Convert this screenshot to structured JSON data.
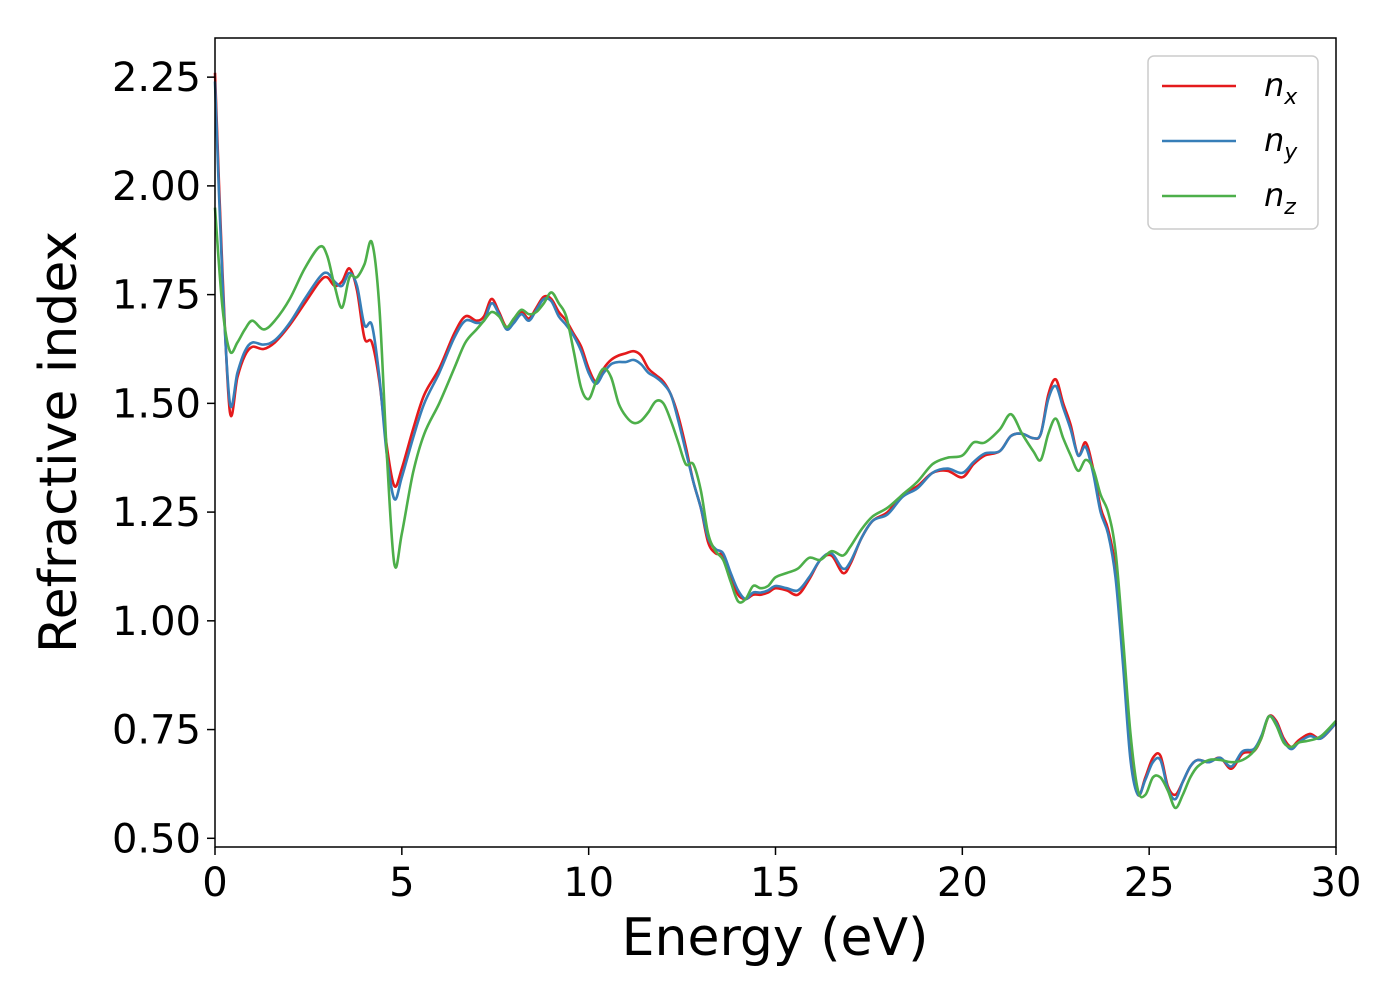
{
  "chart_data": {
    "type": "line",
    "xlabel": "Energy (eV)",
    "ylabel": "Refractive index",
    "xlim": [
      0,
      30
    ],
    "ylim": [
      0.48,
      2.34
    ],
    "xticks": [
      "0",
      "5",
      "10",
      "15",
      "20",
      "25",
      "30"
    ],
    "yticks": [
      "0.50",
      "0.75",
      "1.00",
      "1.25",
      "1.50",
      "1.75",
      "2.00",
      "2.25"
    ],
    "legend_position": "top-right",
    "grid": false,
    "series": [
      {
        "name": "n",
        "sub": "x",
        "color": "#e41a1c",
        "x": [
          0,
          0.2,
          0.4,
          0.6,
          0.8,
          1.0,
          1.3,
          1.6,
          2.0,
          2.4,
          2.8,
          3.0,
          3.2,
          3.4,
          3.6,
          3.8,
          4.0,
          4.2,
          4.4,
          4.6,
          4.8,
          5.0,
          5.3,
          5.6,
          6.0,
          6.4,
          6.7,
          7.0,
          7.2,
          7.4,
          7.6,
          7.8,
          8.0,
          8.2,
          8.4,
          8.6,
          8.8,
          9.0,
          9.2,
          9.4,
          9.6,
          9.8,
          10.0,
          10.2,
          10.4,
          10.6,
          10.8,
          11.0,
          11.2,
          11.4,
          11.6,
          11.8,
          12.0,
          12.2,
          12.4,
          12.6,
          12.8,
          13.0,
          13.2,
          13.4,
          13.6,
          13.8,
          14.0,
          14.2,
          14.4,
          14.6,
          14.8,
          15.0,
          15.3,
          15.6,
          15.9,
          16.2,
          16.5,
          16.8,
          17.0,
          17.3,
          17.6,
          18.0,
          18.4,
          18.8,
          19.2,
          19.6,
          20.0,
          20.3,
          20.6,
          21.0,
          21.3,
          21.6,
          21.9,
          22.1,
          22.3,
          22.5,
          22.7,
          22.9,
          23.1,
          23.3,
          23.5,
          23.7,
          23.9,
          24.1,
          24.3,
          24.5,
          24.7,
          24.9,
          25.1,
          25.3,
          25.5,
          25.7,
          25.9,
          26.1,
          26.3,
          26.6,
          26.9,
          27.2,
          27.5,
          27.8,
          28.0,
          28.2,
          28.4,
          28.6,
          28.8,
          29.0,
          29.3,
          29.6,
          30.0
        ],
        "y": [
          2.26,
          1.8,
          1.48,
          1.56,
          1.61,
          1.63,
          1.625,
          1.64,
          1.68,
          1.73,
          1.78,
          1.79,
          1.77,
          1.78,
          1.81,
          1.76,
          1.65,
          1.64,
          1.55,
          1.4,
          1.31,
          1.35,
          1.44,
          1.52,
          1.58,
          1.66,
          1.7,
          1.69,
          1.7,
          1.74,
          1.71,
          1.675,
          1.69,
          1.71,
          1.695,
          1.72,
          1.745,
          1.74,
          1.71,
          1.69,
          1.66,
          1.63,
          1.58,
          1.55,
          1.58,
          1.6,
          1.61,
          1.615,
          1.62,
          1.61,
          1.58,
          1.565,
          1.55,
          1.52,
          1.47,
          1.4,
          1.32,
          1.26,
          1.18,
          1.155,
          1.15,
          1.1,
          1.06,
          1.05,
          1.06,
          1.06,
          1.065,
          1.075,
          1.07,
          1.06,
          1.095,
          1.14,
          1.15,
          1.11,
          1.13,
          1.19,
          1.23,
          1.25,
          1.29,
          1.31,
          1.34,
          1.345,
          1.33,
          1.36,
          1.38,
          1.39,
          1.425,
          1.43,
          1.42,
          1.43,
          1.52,
          1.555,
          1.5,
          1.45,
          1.38,
          1.41,
          1.35,
          1.26,
          1.21,
          1.12,
          0.92,
          0.7,
          0.6,
          0.64,
          0.685,
          0.69,
          0.62,
          0.6,
          0.63,
          0.665,
          0.68,
          0.675,
          0.685,
          0.66,
          0.695,
          0.7,
          0.73,
          0.78,
          0.77,
          0.73,
          0.71,
          0.725,
          0.74,
          0.73,
          0.765
        ]
      },
      {
        "name": "n",
        "sub": "y",
        "color": "#377eb8",
        "x": [
          0,
          0.2,
          0.4,
          0.6,
          0.8,
          1.0,
          1.3,
          1.6,
          2.0,
          2.4,
          2.8,
          3.0,
          3.2,
          3.4,
          3.6,
          3.8,
          4.0,
          4.2,
          4.4,
          4.6,
          4.8,
          5.0,
          5.3,
          5.6,
          6.0,
          6.4,
          6.7,
          7.0,
          7.2,
          7.4,
          7.6,
          7.8,
          8.0,
          8.2,
          8.4,
          8.6,
          8.8,
          9.0,
          9.2,
          9.4,
          9.6,
          9.8,
          10.0,
          10.2,
          10.4,
          10.6,
          10.8,
          11.0,
          11.2,
          11.4,
          11.6,
          11.8,
          12.0,
          12.2,
          12.4,
          12.6,
          12.8,
          13.0,
          13.2,
          13.4,
          13.6,
          13.8,
          14.0,
          14.2,
          14.4,
          14.6,
          14.8,
          15.0,
          15.3,
          15.6,
          15.9,
          16.2,
          16.5,
          16.8,
          17.0,
          17.3,
          17.6,
          18.0,
          18.4,
          18.8,
          19.2,
          19.6,
          20.0,
          20.3,
          20.6,
          21.0,
          21.3,
          21.6,
          21.9,
          22.1,
          22.3,
          22.5,
          22.7,
          22.9,
          23.1,
          23.3,
          23.5,
          23.7,
          23.9,
          24.1,
          24.3,
          24.5,
          24.7,
          24.9,
          25.1,
          25.3,
          25.5,
          25.7,
          25.9,
          26.1,
          26.3,
          26.6,
          26.9,
          27.2,
          27.5,
          27.8,
          28.0,
          28.2,
          28.4,
          28.6,
          28.8,
          29.0,
          29.3,
          29.6,
          30.0
        ],
        "y": [
          2.24,
          1.78,
          1.5,
          1.57,
          1.62,
          1.64,
          1.635,
          1.645,
          1.685,
          1.74,
          1.79,
          1.8,
          1.78,
          1.77,
          1.8,
          1.77,
          1.68,
          1.68,
          1.56,
          1.38,
          1.28,
          1.33,
          1.42,
          1.5,
          1.57,
          1.65,
          1.69,
          1.685,
          1.69,
          1.73,
          1.705,
          1.67,
          1.685,
          1.705,
          1.69,
          1.715,
          1.74,
          1.735,
          1.7,
          1.68,
          1.655,
          1.62,
          1.57,
          1.545,
          1.57,
          1.59,
          1.595,
          1.595,
          1.6,
          1.59,
          1.57,
          1.56,
          1.545,
          1.52,
          1.46,
          1.39,
          1.32,
          1.26,
          1.19,
          1.165,
          1.155,
          1.11,
          1.07,
          1.05,
          1.065,
          1.065,
          1.07,
          1.08,
          1.075,
          1.07,
          1.1,
          1.14,
          1.155,
          1.12,
          1.135,
          1.19,
          1.23,
          1.245,
          1.285,
          1.305,
          1.34,
          1.35,
          1.34,
          1.365,
          1.385,
          1.39,
          1.425,
          1.43,
          1.42,
          1.43,
          1.51,
          1.54,
          1.49,
          1.44,
          1.38,
          1.4,
          1.34,
          1.25,
          1.2,
          1.1,
          0.9,
          0.68,
          0.6,
          0.635,
          0.675,
          0.68,
          0.615,
          0.59,
          0.63,
          0.665,
          0.68,
          0.675,
          0.685,
          0.665,
          0.7,
          0.705,
          0.735,
          0.78,
          0.765,
          0.725,
          0.705,
          0.72,
          0.735,
          0.73,
          0.765
        ]
      },
      {
        "name": "n",
        "sub": "z",
        "color": "#4daf4a",
        "x": [
          0,
          0.2,
          0.4,
          0.6,
          0.8,
          1.0,
          1.3,
          1.6,
          2.0,
          2.4,
          2.8,
          3.0,
          3.2,
          3.4,
          3.6,
          3.8,
          4.0,
          4.2,
          4.4,
          4.6,
          4.8,
          5.0,
          5.3,
          5.6,
          6.0,
          6.4,
          6.7,
          7.0,
          7.2,
          7.4,
          7.6,
          7.8,
          8.0,
          8.2,
          8.4,
          8.6,
          8.8,
          9.0,
          9.2,
          9.4,
          9.6,
          9.8,
          10.0,
          10.2,
          10.4,
          10.6,
          10.8,
          11.0,
          11.2,
          11.4,
          11.6,
          11.8,
          12.0,
          12.2,
          12.4,
          12.6,
          12.8,
          13.0,
          13.2,
          13.4,
          13.6,
          13.8,
          14.0,
          14.2,
          14.4,
          14.6,
          14.8,
          15.0,
          15.3,
          15.6,
          15.9,
          16.2,
          16.5,
          16.8,
          17.0,
          17.3,
          17.6,
          18.0,
          18.4,
          18.8,
          19.2,
          19.6,
          20.0,
          20.3,
          20.6,
          21.0,
          21.3,
          21.6,
          21.9,
          22.1,
          22.3,
          22.5,
          22.7,
          22.9,
          23.1,
          23.3,
          23.5,
          23.7,
          23.9,
          24.1,
          24.3,
          24.5,
          24.7,
          24.9,
          25.1,
          25.3,
          25.5,
          25.7,
          25.9,
          26.1,
          26.3,
          26.6,
          26.9,
          27.2,
          27.5,
          27.8,
          28.0,
          28.2,
          28.4,
          28.6,
          28.8,
          29.0,
          29.3,
          29.6,
          30.0
        ],
        "y": [
          1.95,
          1.72,
          1.62,
          1.64,
          1.67,
          1.69,
          1.67,
          1.69,
          1.74,
          1.81,
          1.86,
          1.84,
          1.77,
          1.72,
          1.79,
          1.79,
          1.82,
          1.87,
          1.72,
          1.38,
          1.13,
          1.2,
          1.34,
          1.43,
          1.5,
          1.58,
          1.64,
          1.67,
          1.69,
          1.71,
          1.7,
          1.675,
          1.695,
          1.715,
          1.705,
          1.71,
          1.73,
          1.755,
          1.73,
          1.7,
          1.62,
          1.535,
          1.51,
          1.55,
          1.58,
          1.56,
          1.5,
          1.47,
          1.455,
          1.46,
          1.48,
          1.505,
          1.5,
          1.46,
          1.41,
          1.36,
          1.36,
          1.3,
          1.2,
          1.16,
          1.14,
          1.09,
          1.045,
          1.05,
          1.08,
          1.075,
          1.08,
          1.1,
          1.11,
          1.12,
          1.145,
          1.14,
          1.16,
          1.15,
          1.17,
          1.21,
          1.24,
          1.26,
          1.29,
          1.32,
          1.36,
          1.375,
          1.38,
          1.41,
          1.41,
          1.44,
          1.475,
          1.43,
          1.39,
          1.37,
          1.43,
          1.465,
          1.42,
          1.38,
          1.345,
          1.37,
          1.35,
          1.29,
          1.25,
          1.16,
          0.96,
          0.74,
          0.61,
          0.6,
          0.64,
          0.64,
          0.61,
          0.57,
          0.6,
          0.64,
          0.665,
          0.68,
          0.68,
          0.675,
          0.68,
          0.7,
          0.73,
          0.78,
          0.76,
          0.72,
          0.71,
          0.72,
          0.725,
          0.735,
          0.77
        ]
      }
    ]
  }
}
